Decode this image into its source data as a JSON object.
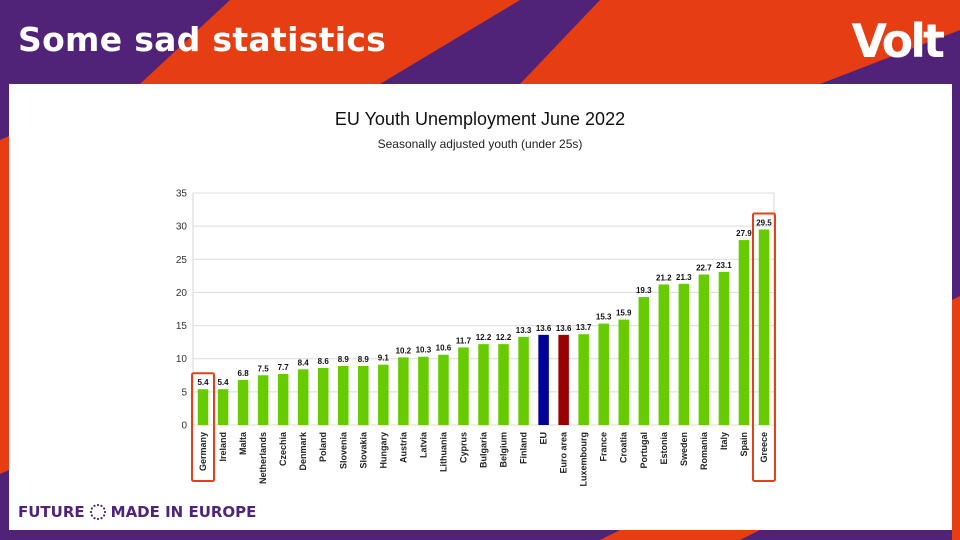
{
  "slide": {
    "title": "Some sad statistics",
    "logo": "Volt",
    "footer_left": "FUTURE",
    "footer_right": "MADE IN EUROPE"
  },
  "colors": {
    "purple": "#502379",
    "orange": "#e63e12",
    "green": "#66cc00",
    "eu": "#000099",
    "euro_area": "#990000",
    "highlight": "#e2401a"
  },
  "chart_data": {
    "type": "bar",
    "title": "EU Youth Unemployment June 2022",
    "subtitle": "Seasonally adjusted youth (under 25s)",
    "xlabel": "",
    "ylabel": "",
    "ylim": [
      0,
      35
    ],
    "yticks": [
      0,
      5,
      10,
      15,
      20,
      25,
      30,
      35
    ],
    "grid": true,
    "categories": [
      "Germany",
      "Ireland",
      "Malta",
      "Netherlands",
      "Czechia",
      "Denmark",
      "Poland",
      "Slovenia",
      "Slovakia",
      "Hungary",
      "Austria",
      "Latvia",
      "Lithuania",
      "Cyprus",
      "Bulgaria",
      "Belgium",
      "Finland",
      "EU",
      "Euro area",
      "Luxembourg",
      "France",
      "Croatia",
      "Portugal",
      "Estonia",
      "Sweden",
      "Romania",
      "Italy",
      "Spain",
      "Greece"
    ],
    "values": [
      5.4,
      5.4,
      6.8,
      7.5,
      7.7,
      8.4,
      8.6,
      8.9,
      8.9,
      9.1,
      10.2,
      10.3,
      10.6,
      11.7,
      12.2,
      12.2,
      13.3,
      13.6,
      13.6,
      13.7,
      15.3,
      15.9,
      19.3,
      21.2,
      21.3,
      22.7,
      23.1,
      27.9,
      29.5
    ],
    "value_labels": [
      "5.4",
      "5.4",
      "6.8",
      "7.5",
      "7.7",
      "8.4",
      "8.6",
      "8.9",
      "8.9",
      "9.1",
      "10.2",
      "10.3",
      "10.6",
      "11.7",
      "12.2",
      "12.2",
      "13.3",
      "13.6",
      "13.6",
      "13.7",
      "15.3",
      "15.9",
      "19.3",
      "21.2",
      "21.3",
      "22.7",
      "23.1",
      "27.9",
      "29.5"
    ],
    "highlighted": [
      "Germany",
      "Greece"
    ]
  }
}
